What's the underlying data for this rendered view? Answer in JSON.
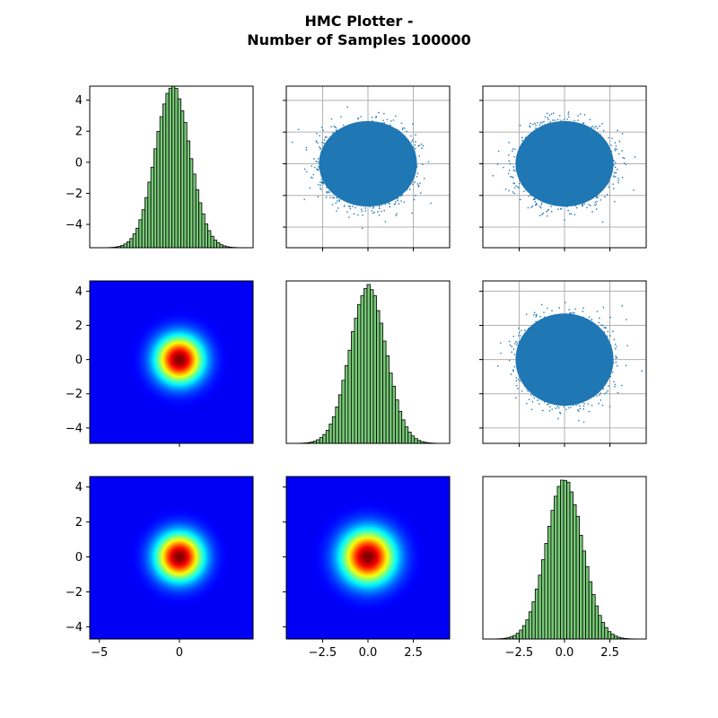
{
  "figure": {
    "title_line1": "HMC Plotter -",
    "title_line2": "Number of Samples 100000"
  },
  "colors": {
    "hist_fill": "#77c977",
    "hist_edge": "#000000",
    "scatter_point": "#1f77b4",
    "grid": "#b0b0b0",
    "density_colormap": "jet"
  },
  "chart_data": [
    {
      "type": "histogram",
      "panel": "row1-col1",
      "orientation": "horizontal",
      "ylim": [
        -5.5,
        4.9
      ],
      "yticks": [
        -4,
        -2,
        0,
        2,
        4
      ],
      "ytick_labels": [
        "−4",
        "−2",
        "0",
        "2",
        "4"
      ],
      "xticks_visible": false,
      "bins": 50,
      "distribution": "standard normal",
      "mean": 0,
      "std": 1
    },
    {
      "type": "scatter",
      "panel": "row1-col2",
      "xlim": [
        -4.5,
        4.5
      ],
      "ylim": [
        -5.3,
        4.9
      ],
      "grid": true,
      "n_points": 100000,
      "distribution": "isotropic normal",
      "mean": [
        0,
        0
      ],
      "std": [
        1,
        1
      ],
      "tick_labels_visible": false
    },
    {
      "type": "scatter",
      "panel": "row1-col3",
      "xlim": [
        -4.5,
        4.5
      ],
      "ylim": [
        -5.3,
        4.9
      ],
      "grid": true,
      "n_points": 100000,
      "distribution": "isotropic normal",
      "mean": [
        0,
        0
      ],
      "std": [
        1,
        1
      ],
      "tick_labels_visible": false
    },
    {
      "type": "heatmap",
      "panel": "row2-col1",
      "xlim": [
        -5.6,
        4.6
      ],
      "ylim": [
        -4.9,
        4.6
      ],
      "yticks": [
        -4,
        -2,
        0,
        2,
        4
      ],
      "ytick_labels": [
        "−4",
        "−2",
        "0",
        "2",
        "4"
      ],
      "colormap": "jet",
      "peak": [
        0,
        0
      ],
      "std": 1
    },
    {
      "type": "histogram",
      "panel": "row2-col2",
      "orientation": "horizontal",
      "xlim": [
        -4.5,
        4.5
      ],
      "bins": 50,
      "distribution": "standard normal",
      "mean": 0,
      "std": 1,
      "tick_labels_visible": false
    },
    {
      "type": "scatter",
      "panel": "row2-col3",
      "xlim": [
        -4.5,
        4.5
      ],
      "ylim": [
        -4.9,
        4.6
      ],
      "grid": true,
      "n_points": 100000,
      "distribution": "isotropic normal",
      "mean": [
        0,
        0
      ],
      "std": [
        1,
        1
      ],
      "tick_labels_visible": false
    },
    {
      "type": "heatmap",
      "panel": "row3-col1",
      "xlim": [
        -5.6,
        4.6
      ],
      "ylim": [
        -4.7,
        4.6
      ],
      "xticks": [
        -5,
        0
      ],
      "xtick_labels": [
        "−5",
        "0"
      ],
      "yticks": [
        -4,
        -2,
        0,
        2,
        4
      ],
      "ytick_labels": [
        "−4",
        "−2",
        "0",
        "2",
        "4"
      ],
      "colormap": "jet",
      "peak": [
        0,
        0
      ],
      "std": 1
    },
    {
      "type": "heatmap",
      "panel": "row3-col2",
      "xlim": [
        -4.5,
        4.5
      ],
      "ylim": [
        -4.7,
        4.6
      ],
      "xticks": [
        -2.5,
        0,
        2.5
      ],
      "xtick_labels": [
        "−2.5",
        "0.0",
        "2.5"
      ],
      "colormap": "jet",
      "peak": [
        0,
        0
      ],
      "std": 1
    },
    {
      "type": "histogram",
      "panel": "row3-col3",
      "orientation": "horizontal",
      "xlim": [
        -4.5,
        4.5
      ],
      "xticks": [
        -2.5,
        0,
        2.5
      ],
      "xtick_labels": [
        "−2.5",
        "0.0",
        "2.5"
      ],
      "bins": 50,
      "distribution": "standard normal",
      "mean": 0,
      "std": 1
    }
  ]
}
